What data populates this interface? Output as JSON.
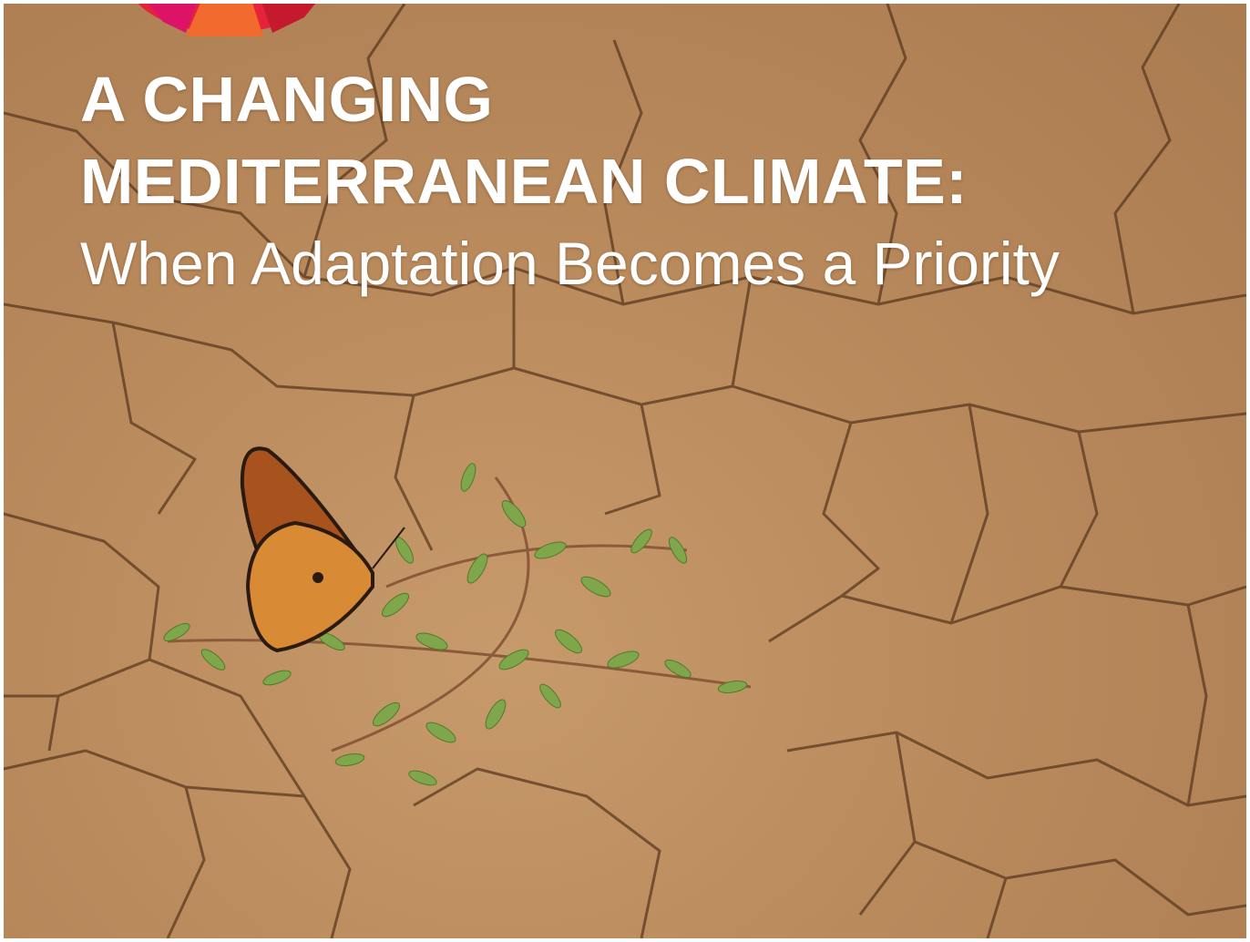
{
  "cover": {
    "title": [
      "A CHANGING",
      "MEDITERRANEAN CLIMATE:"
    ],
    "subtitle": "When Adaptation Becomes a Priority"
  }
}
